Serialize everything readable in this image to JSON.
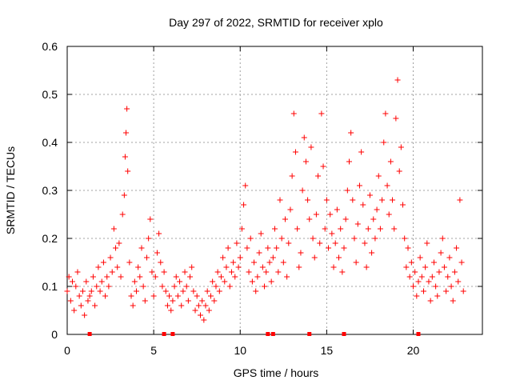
{
  "chart_data": {
    "type": "scatter",
    "title": "Day 297 of 2022, SRMTID for receiver xplo",
    "xlabel": "GPS time / hours",
    "ylabel": "SRMTID / TECUs",
    "xlim": [
      0,
      24
    ],
    "ylim": [
      0,
      0.6
    ],
    "x_ticks": [
      {
        "value": 0,
        "label": "0"
      },
      {
        "value": 5,
        "label": "5"
      },
      {
        "value": 10,
        "label": "10"
      },
      {
        "value": 15,
        "label": "15"
      },
      {
        "value": 20,
        "label": "20"
      }
    ],
    "y_ticks": [
      {
        "value": 0,
        "label": "0"
      },
      {
        "value": 0.1,
        "label": "0.1"
      },
      {
        "value": 0.2,
        "label": "0.2"
      },
      {
        "value": 0.3,
        "label": "0.3"
      },
      {
        "value": 0.4,
        "label": "0.4"
      },
      {
        "value": 0.5,
        "label": "0.5"
      },
      {
        "value": 0.6,
        "label": "0.6"
      }
    ],
    "grid": true,
    "marker": "+",
    "color": "#ff0000",
    "series": [
      {
        "name": "SRMTID",
        "points": [
          [
            0.0,
            0.09
          ],
          [
            0.1,
            0.12
          ],
          [
            0.2,
            0.07
          ],
          [
            0.3,
            0.11
          ],
          [
            0.4,
            0.05
          ],
          [
            0.5,
            0.1
          ],
          [
            0.6,
            0.13
          ],
          [
            0.7,
            0.08
          ],
          [
            0.8,
            0.06
          ],
          [
            0.9,
            0.09
          ],
          [
            1.0,
            0.04
          ],
          [
            1.1,
            0.11
          ],
          [
            1.2,
            0.07
          ],
          [
            1.3,
            0.08
          ],
          [
            1.4,
            0.09
          ],
          [
            1.5,
            0.12
          ],
          [
            1.6,
            0.06
          ],
          [
            1.7,
            0.1
          ],
          [
            1.8,
            0.14
          ],
          [
            1.9,
            0.09
          ],
          [
            2.0,
            0.11
          ],
          [
            2.1,
            0.15
          ],
          [
            2.2,
            0.08
          ],
          [
            2.3,
            0.12
          ],
          [
            2.4,
            0.1
          ],
          [
            2.5,
            0.16
          ],
          [
            2.6,
            0.13
          ],
          [
            2.7,
            0.22
          ],
          [
            2.8,
            0.18
          ],
          [
            2.9,
            0.14
          ],
          [
            3.0,
            0.19
          ],
          [
            3.1,
            0.12
          ],
          [
            3.2,
            0.25
          ],
          [
            3.3,
            0.29
          ],
          [
            3.35,
            0.37
          ],
          [
            3.4,
            0.42
          ],
          [
            3.45,
            0.47
          ],
          [
            3.5,
            0.34
          ],
          [
            3.6,
            0.15
          ],
          [
            3.7,
            0.08
          ],
          [
            3.8,
            0.06
          ],
          [
            3.9,
            0.11
          ],
          [
            4.0,
            0.09
          ],
          [
            4.1,
            0.14
          ],
          [
            4.2,
            0.12
          ],
          [
            4.3,
            0.18
          ],
          [
            4.4,
            0.1
          ],
          [
            4.5,
            0.07
          ],
          [
            4.6,
            0.16
          ],
          [
            4.7,
            0.2
          ],
          [
            4.8,
            0.24
          ],
          [
            4.9,
            0.13
          ],
          [
            5.0,
            0.08
          ],
          [
            5.1,
            0.12
          ],
          [
            5.2,
            0.17
          ],
          [
            5.3,
            0.21
          ],
          [
            5.4,
            0.15
          ],
          [
            5.5,
            0.1
          ],
          [
            5.6,
            0.13
          ],
          [
            5.7,
            0.09
          ],
          [
            5.8,
            0.06
          ],
          [
            5.9,
            0.08
          ],
          [
            6.0,
            0.05
          ],
          [
            6.1,
            0.07
          ],
          [
            6.2,
            0.1
          ],
          [
            6.3,
            0.12
          ],
          [
            6.4,
            0.08
          ],
          [
            6.5,
            0.11
          ],
          [
            6.6,
            0.06
          ],
          [
            6.7,
            0.09
          ],
          [
            6.8,
            0.13
          ],
          [
            6.9,
            0.1
          ],
          [
            7.0,
            0.07
          ],
          [
            7.1,
            0.12
          ],
          [
            7.2,
            0.14
          ],
          [
            7.3,
            0.09
          ],
          [
            7.4,
            0.05
          ],
          [
            7.5,
            0.08
          ],
          [
            7.6,
            0.06
          ],
          [
            7.7,
            0.04
          ],
          [
            7.8,
            0.07
          ],
          [
            7.9,
            0.03
          ],
          [
            8.0,
            0.06
          ],
          [
            8.1,
            0.09
          ],
          [
            8.2,
            0.05
          ],
          [
            8.3,
            0.08
          ],
          [
            8.4,
            0.11
          ],
          [
            8.5,
            0.07
          ],
          [
            8.6,
            0.1
          ],
          [
            8.7,
            0.13
          ],
          [
            8.8,
            0.09
          ],
          [
            8.9,
            0.12
          ],
          [
            9.0,
            0.16
          ],
          [
            9.1,
            0.11
          ],
          [
            9.2,
            0.14
          ],
          [
            9.3,
            0.18
          ],
          [
            9.4,
            0.1
          ],
          [
            9.5,
            0.13
          ],
          [
            9.6,
            0.15
          ],
          [
            9.7,
            0.12
          ],
          [
            9.8,
            0.19
          ],
          [
            9.9,
            0.14
          ],
          [
            10.0,
            0.16
          ],
          [
            10.1,
            0.22
          ],
          [
            10.2,
            0.27
          ],
          [
            10.3,
            0.31
          ],
          [
            10.4,
            0.18
          ],
          [
            10.5,
            0.13
          ],
          [
            10.6,
            0.2
          ],
          [
            10.7,
            0.11
          ],
          [
            10.8,
            0.15
          ],
          [
            10.9,
            0.09
          ],
          [
            11.0,
            0.12
          ],
          [
            11.1,
            0.17
          ],
          [
            11.2,
            0.21
          ],
          [
            11.3,
            0.14
          ],
          [
            11.4,
            0.1
          ],
          [
            11.5,
            0.13
          ],
          [
            11.6,
            0.18
          ],
          [
            11.7,
            0.15
          ],
          [
            11.8,
            0.11
          ],
          [
            11.9,
            0.16
          ],
          [
            12.0,
            0.22
          ],
          [
            12.1,
            0.18
          ],
          [
            12.2,
            0.13
          ],
          [
            12.3,
            0.28
          ],
          [
            12.4,
            0.2
          ],
          [
            12.5,
            0.15
          ],
          [
            12.6,
            0.24
          ],
          [
            12.7,
            0.12
          ],
          [
            12.8,
            0.19
          ],
          [
            12.9,
            0.26
          ],
          [
            13.0,
            0.33
          ],
          [
            13.1,
            0.46
          ],
          [
            13.2,
            0.38
          ],
          [
            13.3,
            0.22
          ],
          [
            13.4,
            0.14
          ],
          [
            13.5,
            0.17
          ],
          [
            13.6,
            0.3
          ],
          [
            13.7,
            0.41
          ],
          [
            13.8,
            0.36
          ],
          [
            13.9,
            0.28
          ],
          [
            14.0,
            0.24
          ],
          [
            14.1,
            0.39
          ],
          [
            14.2,
            0.2
          ],
          [
            14.3,
            0.16
          ],
          [
            14.4,
            0.25
          ],
          [
            14.5,
            0.33
          ],
          [
            14.6,
            0.19
          ],
          [
            14.7,
            0.46
          ],
          [
            14.8,
            0.35
          ],
          [
            14.9,
            0.22
          ],
          [
            15.0,
            0.28
          ],
          [
            15.1,
            0.18
          ],
          [
            15.2,
            0.25
          ],
          [
            15.3,
            0.21
          ],
          [
            15.4,
            0.14
          ],
          [
            15.5,
            0.19
          ],
          [
            15.6,
            0.26
          ],
          [
            15.7,
            0.16
          ],
          [
            15.8,
            0.22
          ],
          [
            15.9,
            0.13
          ],
          [
            16.0,
            0.18
          ],
          [
            16.1,
            0.24
          ],
          [
            16.2,
            0.3
          ],
          [
            16.3,
            0.36
          ],
          [
            16.4,
            0.42
          ],
          [
            16.5,
            0.28
          ],
          [
            16.6,
            0.2
          ],
          [
            16.7,
            0.15
          ],
          [
            16.8,
            0.23
          ],
          [
            16.9,
            0.31
          ],
          [
            17.0,
            0.38
          ],
          [
            17.1,
            0.27
          ],
          [
            17.2,
            0.19
          ],
          [
            17.3,
            0.14
          ],
          [
            17.4,
            0.22
          ],
          [
            17.5,
            0.29
          ],
          [
            17.6,
            0.17
          ],
          [
            17.7,
            0.24
          ],
          [
            17.8,
            0.2
          ],
          [
            17.9,
            0.26
          ],
          [
            18.0,
            0.33
          ],
          [
            18.1,
            0.22
          ],
          [
            18.2,
            0.28
          ],
          [
            18.3,
            0.4
          ],
          [
            18.4,
            0.46
          ],
          [
            18.5,
            0.31
          ],
          [
            18.6,
            0.25
          ],
          [
            18.7,
            0.36
          ],
          [
            18.8,
            0.28
          ],
          [
            18.9,
            0.22
          ],
          [
            19.0,
            0.45
          ],
          [
            19.1,
            0.53
          ],
          [
            19.2,
            0.34
          ],
          [
            19.3,
            0.39
          ],
          [
            19.4,
            0.27
          ],
          [
            19.5,
            0.2
          ],
          [
            19.6,
            0.14
          ],
          [
            19.7,
            0.18
          ],
          [
            19.8,
            0.12
          ],
          [
            19.9,
            0.15
          ],
          [
            20.0,
            0.1
          ],
          [
            20.1,
            0.13
          ],
          [
            20.2,
            0.08
          ],
          [
            20.3,
            0.11
          ],
          [
            20.4,
            0.16
          ],
          [
            20.5,
            0.12
          ],
          [
            20.6,
            0.09
          ],
          [
            20.7,
            0.14
          ],
          [
            20.8,
            0.19
          ],
          [
            20.9,
            0.11
          ],
          [
            21.0,
            0.07
          ],
          [
            21.1,
            0.12
          ],
          [
            21.2,
            0.15
          ],
          [
            21.3,
            0.1
          ],
          [
            21.4,
            0.08
          ],
          [
            21.5,
            0.13
          ],
          [
            21.6,
            0.17
          ],
          [
            21.7,
            0.2
          ],
          [
            21.8,
            0.14
          ],
          [
            21.9,
            0.09
          ],
          [
            22.0,
            0.12
          ],
          [
            22.1,
            0.16
          ],
          [
            22.2,
            0.1
          ],
          [
            22.3,
            0.07
          ],
          [
            22.4,
            0.13
          ],
          [
            22.5,
            0.18
          ],
          [
            22.6,
            0.11
          ],
          [
            22.7,
            0.28
          ],
          [
            22.8,
            0.15
          ],
          [
            22.9,
            0.09
          ]
        ]
      }
    ],
    "bottom_markers": [
      1.3,
      5.6,
      6.1,
      11.6,
      11.9,
      14.0,
      16.0,
      20.3
    ]
  }
}
